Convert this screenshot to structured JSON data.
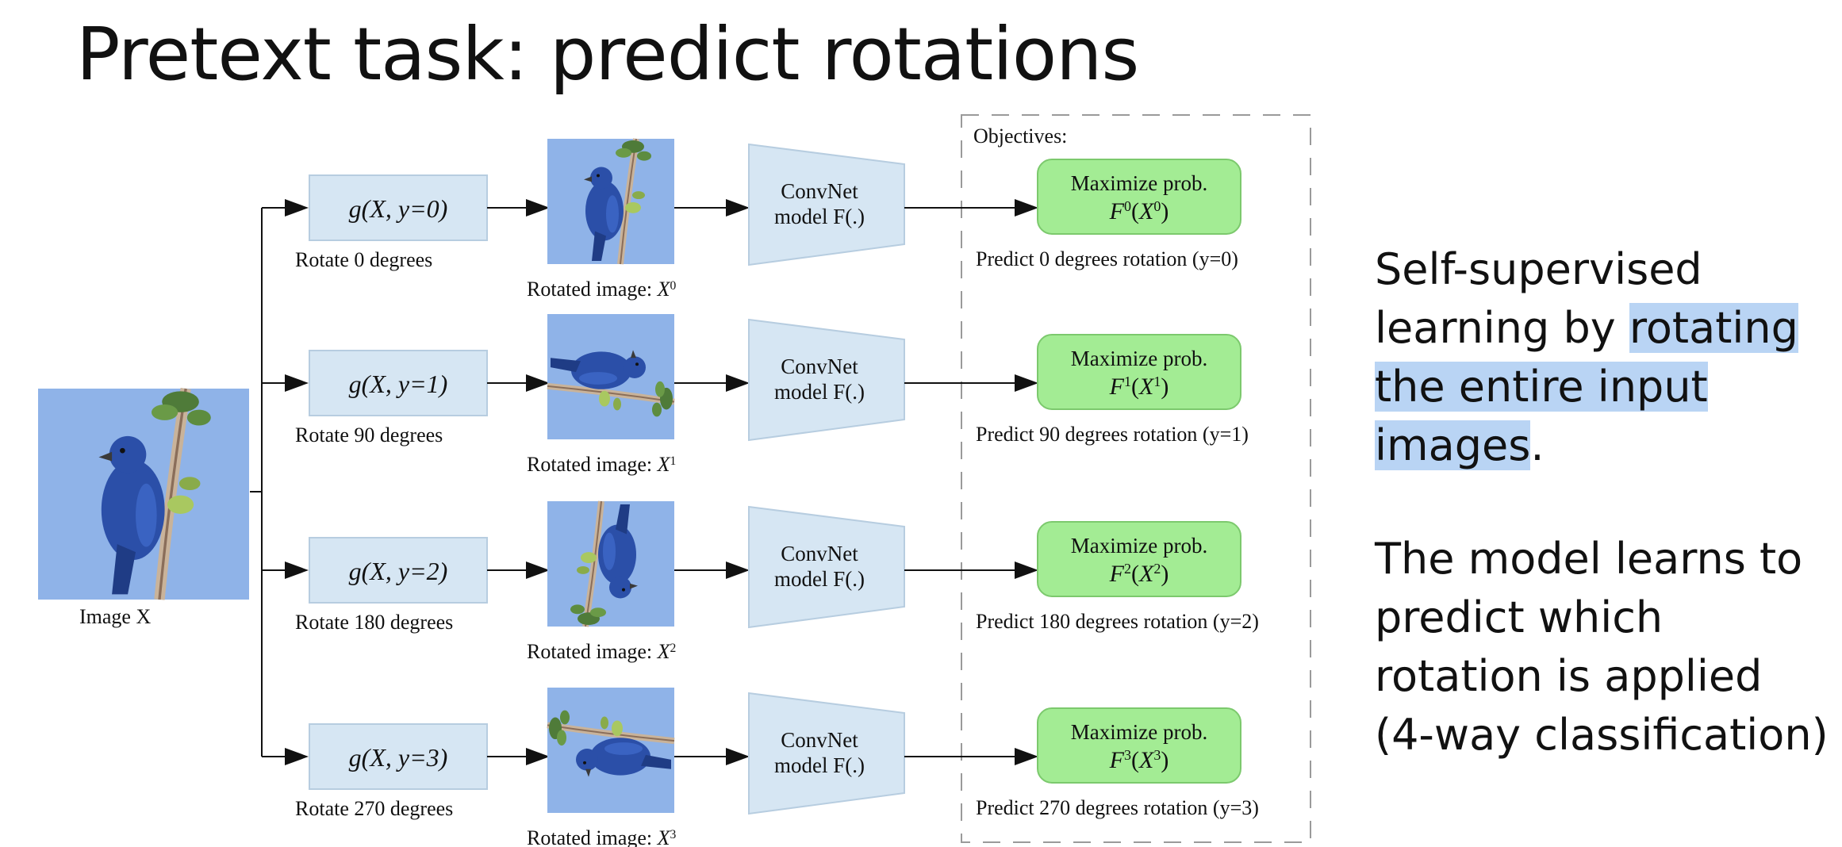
{
  "title": "Pretext task: predict rotations",
  "diagram": {
    "input_caption": "Image X",
    "objectives_header": "Objectives:",
    "convnet_label": [
      "ConvNet",
      "model F(.)"
    ],
    "maximize_label": "Maximize prob.",
    "rotated_image_label": "Rotated image: X",
    "rows": [
      {
        "g_label": "g(X, y=0)",
        "rotate_label": "Rotate 0 degrees",
        "sup": "0",
        "predict_label": "Predict 0 degrees rotation (y=0)"
      },
      {
        "g_label": "g(X, y=1)",
        "rotate_label": "Rotate 90 degrees",
        "sup": "1",
        "predict_label": "Predict 90 degrees rotation (y=1)"
      },
      {
        "g_label": "g(X, y=2)",
        "rotate_label": "Rotate 180 degrees",
        "sup": "2",
        "predict_label": "Predict 180 degrees rotation (y=2)"
      },
      {
        "g_label": "g(X, y=3)",
        "rotate_label": "Rotate 270 degrees",
        "sup": "3",
        "predict_label": "Predict 270 degrees rotation (y=3)"
      }
    ]
  },
  "side_text": {
    "p1_before": "Self-supervised learning by ",
    "p1_highlight": "rotating the entire input images",
    "p1_after": ".",
    "p2": "The model learns to predict which rotation is applied (4-way classification)"
  },
  "colors": {
    "box_fill": "#d6e6f3",
    "box_stroke": "#b7cde0",
    "objective_fill": "#a3ec94",
    "objective_stroke": "#7cc96d",
    "sky": "#8fb3e8",
    "bird": "#2b4fa8",
    "highlight": "#b9d4f4"
  }
}
